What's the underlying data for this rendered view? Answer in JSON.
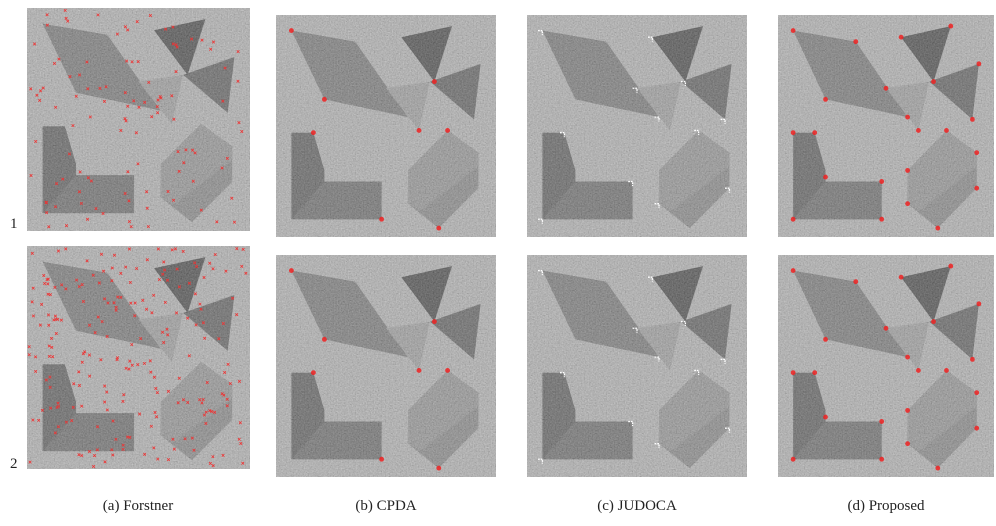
{
  "figure": {
    "row_labels": [
      "1",
      "2"
    ],
    "captions": [
      "(a) Forstner",
      "(b) CPDA",
      "(c) JUDOCA",
      "(d) Proposed"
    ]
  }
}
